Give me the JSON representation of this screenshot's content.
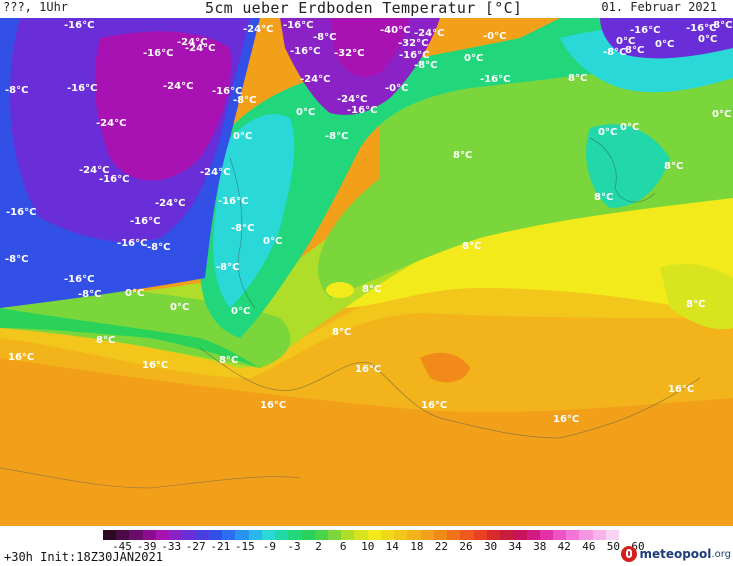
{
  "header": {
    "left_text": "???, 1Uhr",
    "title": "5cm ueber Erdboden Temperatur [°C]",
    "date": "01. Februar 2021"
  },
  "map": {
    "labels": [
      "-16°C",
      "-24°C",
      "-24°C",
      "-16°C",
      "-8°C",
      "-40°C",
      "-24°C",
      "-8°C",
      "-16°C",
      "-0°C",
      "-16°C",
      "-32°C",
      "-32°C",
      "-16°C",
      "0°C",
      "-8°C",
      "-16°C",
      "-24°C",
      "-24°C",
      "-16°C",
      "-8°C",
      "-0°C",
      "-16°C",
      "-8°C",
      "-16°C",
      "0°C",
      "-16°C",
      "-24°C",
      "0°C",
      "0°C",
      "8°C",
      "-24°C",
      "-8°C",
      "0°C",
      "8°C",
      "-24°C",
      "-24°C",
      "-16°C",
      "-16°C",
      "-8°C",
      "-16°C",
      "8°C",
      "-16°C",
      "0°C",
      "-8°C",
      "8°C",
      "8°C",
      "-16°C",
      "-8°C",
      "-8°C",
      "8°C",
      "0°C",
      "0°C",
      "8°C",
      "8°C",
      "16°C",
      "16°C",
      "8°C",
      "16°C",
      "16°C",
      "16°C",
      "16°C",
      "16°C",
      "-8°C",
      "-16°C",
      "0°C",
      "0°C",
      "8°C",
      "0°C",
      "-24°C",
      "0°C",
      "8°C",
      "-24°C",
      "-16°C",
      "-8°C",
      "0°C"
    ],
    "color_legend": [
      "#2b0a24",
      "#4a0a45",
      "#6b0b6b",
      "#8b0d8f",
      "#a812b3",
      "#8a22c6",
      "#6a2ed8",
      "#4a3ee0",
      "#3350e6",
      "#2b6ef0",
      "#2894f2",
      "#28b8ee",
      "#2ad8d8",
      "#22d8a8",
      "#22d67c",
      "#2ad25a",
      "#4ad44a",
      "#7ad63a",
      "#aedd2a",
      "#d8e41e",
      "#f2ea1a",
      "#f2d81a",
      "#f2c61a",
      "#f2b41a",
      "#f2a01a",
      "#f28a1a",
      "#f2721a",
      "#ee5a1e",
      "#e84222",
      "#d82a2a",
      "#c81e3a",
      "#c8125a",
      "#d21a82",
      "#e230a8",
      "#ee52c6",
      "#f474d8",
      "#f696e2",
      "#f8b4ea",
      "#fad2f2"
    ]
  },
  "scale": {
    "ticks": [
      "-45",
      "-39",
      "-33",
      "-27",
      "-21",
      "-15",
      "-9",
      "-3",
      "2",
      "6",
      "10",
      "14",
      "18",
      "22",
      "26",
      "30",
      "34",
      "38",
      "42",
      "46",
      "50",
      "60"
    ]
  },
  "footer": {
    "init_text": "+30h Init:18Z30JAN2021",
    "brand_name": "meteopool",
    "brand_tld": ".org"
  }
}
